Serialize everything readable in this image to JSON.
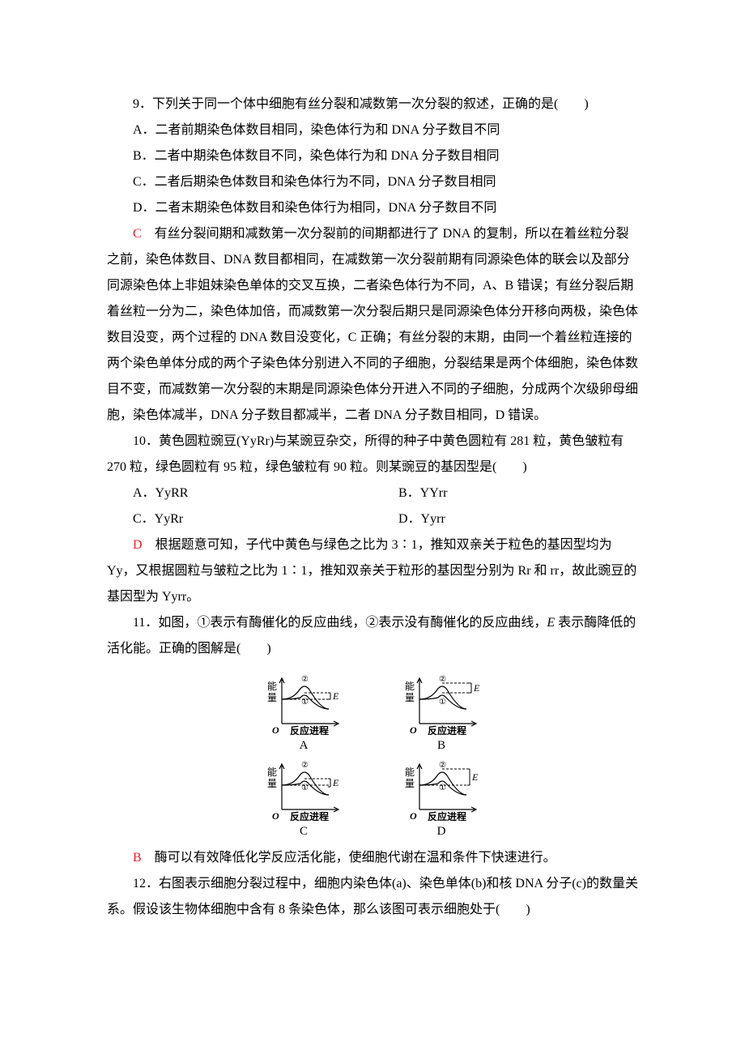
{
  "q9": {
    "stem": "9．下列关于同一个体中细胞有丝分裂和减数第一次分裂的叙述，正确的是(　　)",
    "optA": "A．二者前期染色体数目相同，染色体行为和 DNA 分子数目不同",
    "optB": "B．二者中期染色体数目不同，染色体行为和 DNA 分子数目相同",
    "optC": "C．二者后期染色体数目和染色体行为不同，DNA 分子数目相同",
    "optD": "D．二者末期染色体数目和染色体行为相同，DNA 分子数目不同",
    "ansLetter": "C",
    "explain": "　有丝分裂间期和减数第一次分裂前的间期都进行了 DNA 的复制，所以在着丝粒分裂之前，染色体数目、DNA 数目都相同，在减数第一次分裂前期有同源染色体的联会以及部分同源染色体上非姐妹染色单体的交叉互换，二者染色体行为不同，A、B 错误；有丝分裂后期着丝粒一分为二，染色体加倍，而减数第一次分裂后期只是同源染色体分开移向两极，染色体数目没变，两个过程的 DNA 数目没变化，C 正确；有丝分裂的末期，由同一个着丝粒连接的两个染色单体分成的两个子染色体分别进入不同的子细胞，分裂结果是两个体细胞，染色体数目不变，而减数第一次分裂的末期是同源染色体分开进入不同的子细胞，分成两个次级卵母细胞，染色体减半，DNA 分子数目都减半，二者 DNA 分子数目相同，D 错误。"
  },
  "q10": {
    "stem": "10．黄色圆粒豌豆(YyRr)与某豌豆杂交，所得的种子中黄色圆粒有 281 粒，黄色皱粒有 270 粒，绿色圆粒有 95 粒，绿色皱粒有 90 粒。则某豌豆的基因型是(　　)",
    "optA": "A．YyRR",
    "optB": "B．YYrr",
    "optC": "C．YyRr",
    "optD": "D．Yyrr",
    "ansLetter": "D",
    "explain": "　根据题意可知，子代中黄色与绿色之比为 3∶1，推知双亲关于粒色的基因型均为 Yy，又根据圆粒与皱粒之比为 1∶1，推知双亲关于粒形的基因型分别为 Rr 和 rr，故此豌豆的基因型为 Yyrr。"
  },
  "q11": {
    "stem_pre": "11．如图，①表示有酶催化的反应曲线，②表示没有酶催化的反应曲线，",
    "stem_ital": "E",
    "stem_post": " 表示酶降低的活化能。正确的图解是(　　)",
    "labelA": "A",
    "labelB": "B",
    "labelC": "C",
    "labelD": "D",
    "ansLetter": "B",
    "explain": "　酶可以有效降低化学反应活化能，使细胞代谢在温和条件下快速进行。"
  },
  "q12": {
    "stem": "12．右图表示细胞分裂过程中，细胞内染色体(a)、染色单体(b)和核 DNA 分子(c)的数量关系。假设该生物体细胞中含有 8 条染色体，那么该图可表示细胞处于(　　)"
  },
  "figureCommon": {
    "ylabel": "能量",
    "xlabel": "反应进程",
    "ELabel": "E",
    "circle1": "①",
    "circle2": "②",
    "strokeColor": "#000000",
    "strokeWidth": 1.2,
    "dash": "3,2",
    "font": "13px SimSun"
  }
}
